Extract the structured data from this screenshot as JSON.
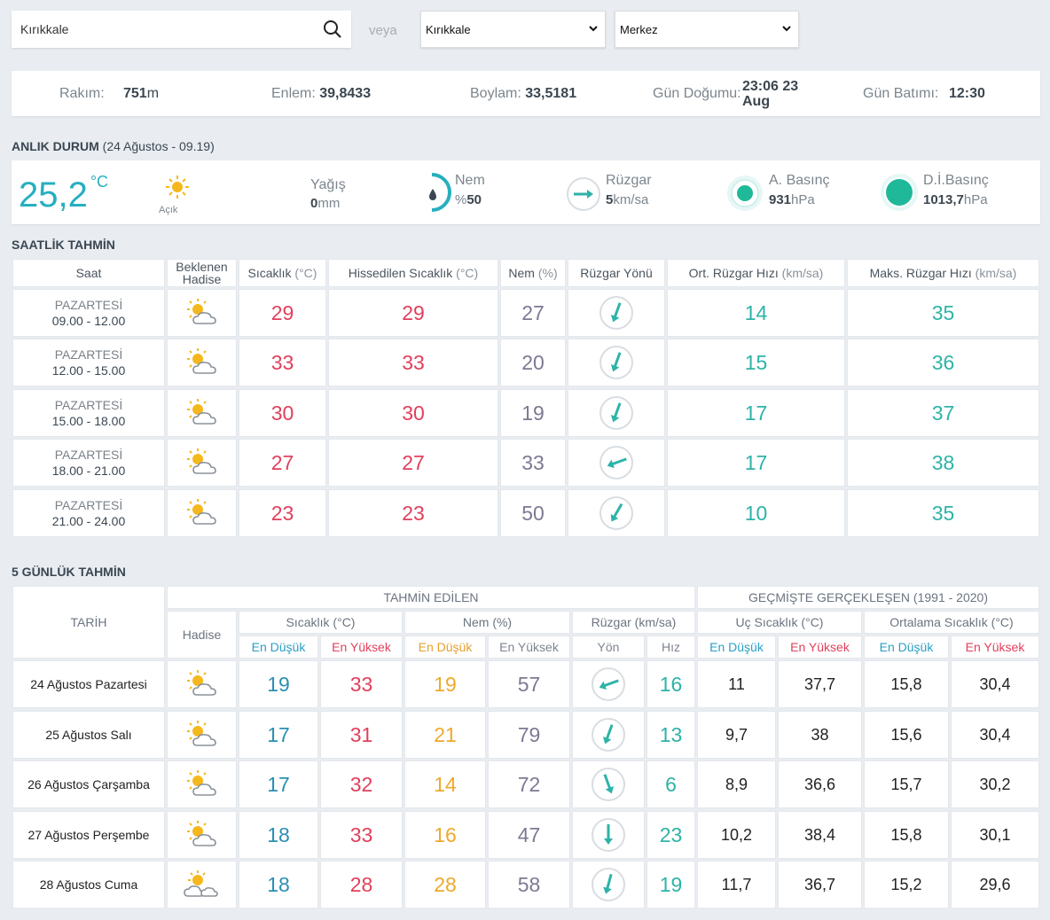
{
  "search": {
    "value": "Kırıkkale",
    "or_label": "veya"
  },
  "selects": {
    "province": "Kırıkkale",
    "district": "Merkez"
  },
  "location": {
    "altitude_label": "Rakım:",
    "altitude_value": "751",
    "altitude_unit": "m",
    "lat_label": "Enlem:",
    "lat_value": "39,8433",
    "lon_label": "Boylam:",
    "lon_value": "33,5181",
    "sunrise_label": "Gün Doğumu:",
    "sunrise_line1": "23:06 23",
    "sunrise_line2": "Aug",
    "sunset_label": "Gün Batımı:",
    "sunset_value": "12:30"
  },
  "current": {
    "title": "ANLIK DURUM",
    "date": "(24 Ağustos - 09.19)",
    "temp": "25,2",
    "temp_unit": "°C",
    "condition": "Açık",
    "rain_label": "Yağış",
    "rain_value": "0",
    "rain_unit": "mm",
    "humidity_label": "Nem",
    "humidity_prefix": "%",
    "humidity_value": "50",
    "wind_label": "Rüzgar",
    "wind_value": "5",
    "wind_unit": "km/sa",
    "pressure_label": "A. Basınç",
    "pressure_value": "931",
    "pressure_unit": "hPa",
    "sea_pressure_label": "D.İ.Basınç",
    "sea_pressure_value": "1013,7",
    "sea_pressure_unit": "hPa",
    "humidity_level": 0.5
  },
  "hourly": {
    "title": "SAATLİK TAHMİN",
    "headers": {
      "saat": "Saat",
      "hadise": "Beklenen Hadise",
      "temp": "Sıcaklık",
      "temp_unit": "(°C)",
      "feels": "Hissedilen Sıcaklık",
      "feels_unit": "(°C)",
      "hum": "Nem",
      "hum_unit": "(%)",
      "wdir": "Rüzgar Yönü",
      "wavg": "Ort. Rüzgar Hızı",
      "wavg_unit": "(km/sa)",
      "wmax": "Maks. Rüzgar Hızı",
      "wmax_unit": "(km/sa)"
    },
    "rows": [
      {
        "day": "PAZARTESİ",
        "time": "09.00 - 12.00",
        "temp": "29",
        "feels": "29",
        "hum": "27",
        "wavg": "14",
        "wmax": "35"
      },
      {
        "day": "PAZARTESİ",
        "time": "12.00 - 15.00",
        "temp": "33",
        "feels": "33",
        "hum": "20",
        "wavg": "15",
        "wmax": "36"
      },
      {
        "day": "PAZARTESİ",
        "time": "15.00 - 18.00",
        "temp": "30",
        "feels": "30",
        "hum": "19",
        "wavg": "17",
        "wmax": "37"
      },
      {
        "day": "PAZARTESİ",
        "time": "18.00 - 21.00",
        "temp": "27",
        "feels": "27",
        "hum": "33",
        "wavg": "17",
        "wmax": "38"
      },
      {
        "day": "PAZARTESİ",
        "time": "21.00 - 24.00",
        "temp": "23",
        "feels": "23",
        "hum": "50",
        "wavg": "10",
        "wmax": "35"
      }
    ]
  },
  "daily": {
    "title": "5 GÜNLÜK TAHMİN",
    "headers": {
      "tarih": "TARİH",
      "forecast": "TAHMİN EDİLEN",
      "past": "GEÇMİŞTE GERÇEKLEŞEN (1991 - 2020)",
      "hadise": "Hadise",
      "temp": "Sıcaklık (°C)",
      "hum": "Nem (%)",
      "wind": "Rüzgar (km/sa)",
      "extreme": "Uç Sıcaklık (°C)",
      "avg": "Ortalama Sıcaklık (°C)",
      "low": "En Düşük",
      "high": "En Yüksek",
      "dir": "Yön",
      "speed": "Hız"
    },
    "rows": [
      {
        "date": "24 Ağustos Pazartesi",
        "tmin": "19",
        "tmax": "33",
        "hmin": "19",
        "hmax": "57",
        "speed": "16",
        "xmin": "11",
        "xmax": "37,7",
        "amin": "15,8",
        "amax": "30,4"
      },
      {
        "date": "25 Ağustos Salı",
        "tmin": "17",
        "tmax": "31",
        "hmin": "21",
        "hmax": "79",
        "speed": "13",
        "xmin": "9,7",
        "xmax": "38",
        "amin": "15,6",
        "amax": "30,4"
      },
      {
        "date": "26 Ağustos Çarşamba",
        "tmin": "17",
        "tmax": "32",
        "hmin": "14",
        "hmax": "72",
        "speed": "6",
        "xmin": "8,9",
        "xmax": "36,6",
        "amin": "15,7",
        "amax": "30,2"
      },
      {
        "date": "27 Ağustos Perşembe",
        "tmin": "18",
        "tmax": "33",
        "hmin": "16",
        "hmax": "47",
        "speed": "23",
        "xmin": "10,2",
        "xmax": "38,4",
        "amin": "15,8",
        "amax": "30,1"
      },
      {
        "date": "28 Ağustos Cuma",
        "tmin": "18",
        "tmax": "28",
        "hmin": "28",
        "hmax": "58",
        "speed": "19",
        "xmin": "11,7",
        "xmax": "36,7",
        "amin": "15,2",
        "amax": "29,6"
      }
    ]
  },
  "colors": {
    "accent": "#26afc0",
    "temp": "#e0405c",
    "humidity": "#7d7993",
    "wind": "#2eb3a8",
    "sun": "#f5b81c"
  }
}
